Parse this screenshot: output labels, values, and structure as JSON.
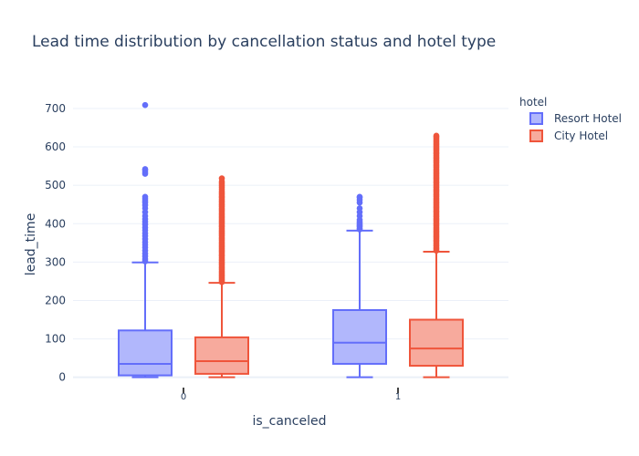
{
  "chart_data": {
    "type": "box",
    "title": "Lead time distribution by cancellation status and hotel type",
    "xlabel": "is_canceled",
    "ylabel": "lead_time",
    "categories": [
      "0",
      "1"
    ],
    "yticks": [
      "0",
      "100",
      "200",
      "300",
      "400",
      "500",
      "600",
      "700"
    ],
    "ylim": [
      -15,
      745
    ],
    "grid": true,
    "legend": {
      "title": "hotel",
      "position": "top-right"
    },
    "series": [
      {
        "name": "Resort Hotel",
        "color": "#636efa",
        "fill": "#b1b7fc",
        "boxes": [
          {
            "category": "0",
            "min": 0,
            "q1": 5,
            "median": 35,
            "q3": 122,
            "upper_fence": 299,
            "outliers": [
              302,
              308,
              315,
              322,
              330,
              338,
              345,
              352,
              360,
              368,
              375,
              383,
              390,
              398,
              405,
              412,
              420,
              430,
              440,
              448,
              455,
              460,
              465,
              470,
              530,
              535,
              540,
              542,
              709
            ]
          },
          {
            "category": "1",
            "min": 0,
            "q1": 35,
            "median": 90,
            "q3": 175,
            "upper_fence": 382,
            "outliers": [
              385,
              388,
              392,
              395,
              398,
              402,
              405,
              410,
              420,
              430,
              440,
              455,
              462,
              468,
              470
            ]
          }
        ]
      },
      {
        "name": "City Hotel",
        "color": "#ef553b",
        "fill": "#f7aa9d",
        "boxes": [
          {
            "category": "0",
            "min": 0,
            "q1": 9,
            "median": 42,
            "q3": 104,
            "upper_fence": 246,
            "outliers": [
              248,
              252,
              256,
              260,
              264,
              268,
              272,
              276,
              280,
              284,
              288,
              292,
              296,
              300,
              304,
              308,
              312,
              316,
              320,
              324,
              328,
              332,
              336,
              340,
              344,
              348,
              352,
              356,
              360,
              364,
              368,
              372,
              376,
              380,
              384,
              388,
              392,
              396,
              400,
              404,
              408,
              412,
              416,
              420,
              424,
              428,
              432,
              436,
              440,
              444,
              448,
              452,
              456,
              460,
              464,
              468,
              472,
              476,
              480,
              485,
              490,
              495,
              500,
              505,
              510,
              518
            ]
          },
          {
            "category": "1",
            "min": 0,
            "q1": 30,
            "median": 75,
            "q3": 150,
            "upper_fence": 327,
            "outliers": [
              330,
              334,
              338,
              342,
              346,
              350,
              354,
              358,
              362,
              366,
              370,
              374,
              378,
              382,
              386,
              390,
              394,
              398,
              402,
              406,
              410,
              414,
              418,
              422,
              426,
              430,
              434,
              438,
              442,
              446,
              450,
              454,
              458,
              462,
              466,
              470,
              474,
              478,
              482,
              486,
              490,
              494,
              498,
              502,
              506,
              510,
              514,
              518,
              522,
              526,
              530,
              534,
              538,
              542,
              546,
              550,
              554,
              558,
              562,
              566,
              570,
              574,
              578,
              582,
              586,
              590,
              594,
              598,
              602,
              606,
              610,
              614,
              618,
              622,
              626,
              629
            ]
          }
        ]
      }
    ]
  }
}
